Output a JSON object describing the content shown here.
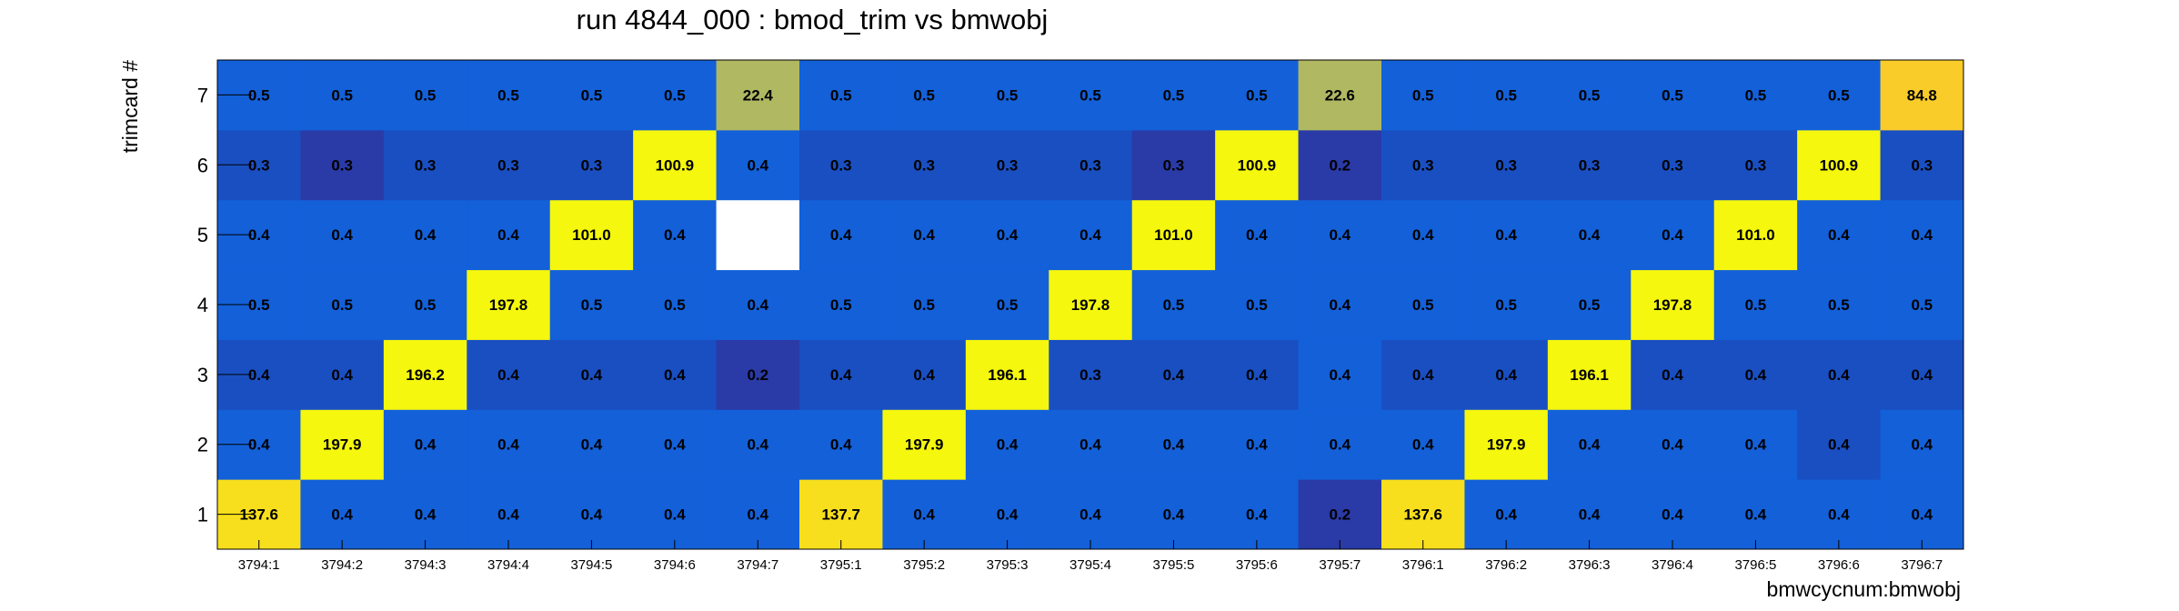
{
  "chart_data": {
    "type": "heatmap",
    "title": "run 4844_000 : bmod_trim vs bmwobj",
    "xlabel": "bmwcycnum:bmwobj",
    "ylabel": "trimcard #",
    "x_categories": [
      "3794:1",
      "3794:2",
      "3794:3",
      "3794:4",
      "3794:5",
      "3794:6",
      "3794:7",
      "3795:1",
      "3795:2",
      "3795:3",
      "3795:4",
      "3795:5",
      "3795:6",
      "3795:7",
      "3796:1",
      "3796:2",
      "3796:3",
      "3796:4",
      "3796:5",
      "3796:6",
      "3796:7"
    ],
    "y_categories": [
      "1",
      "2",
      "3",
      "4",
      "5",
      "6",
      "7"
    ],
    "grid": false,
    "values": [
      [
        "137.6",
        "0.4",
        "0.4",
        "0.4",
        "0.4",
        "0.4",
        "0.4",
        "137.7",
        "0.4",
        "0.4",
        "0.4",
        "0.4",
        "0.4",
        "0.2",
        "137.6",
        "0.4",
        "0.4",
        "0.4",
        "0.4",
        "0.4",
        "0.4"
      ],
      [
        "0.4",
        "197.9",
        "0.4",
        "0.4",
        "0.4",
        "0.4",
        "0.4",
        "0.4",
        "197.9",
        "0.4",
        "0.4",
        "0.4",
        "0.4",
        "0.4",
        "0.4",
        "197.9",
        "0.4",
        "0.4",
        "0.4",
        "0.4",
        "0.4"
      ],
      [
        "0.4",
        "0.4",
        "196.2",
        "0.4",
        "0.4",
        "0.4",
        "0.2",
        "0.4",
        "0.4",
        "196.1",
        "0.3",
        "0.4",
        "0.4",
        "0.4",
        "0.4",
        "0.4",
        "196.1",
        "0.4",
        "0.4",
        "0.4",
        "0.4"
      ],
      [
        "0.5",
        "0.5",
        "0.5",
        "197.8",
        "0.5",
        "0.5",
        "0.4",
        "0.5",
        "0.5",
        "0.5",
        "197.8",
        "0.5",
        "0.5",
        "0.4",
        "0.5",
        "0.5",
        "0.5",
        "197.8",
        "0.5",
        "0.5",
        "0.5"
      ],
      [
        "0.4",
        "0.4",
        "0.4",
        "0.4",
        "101.0",
        "0.4",
        null,
        "0.4",
        "0.4",
        "0.4",
        "0.4",
        "101.0",
        "0.4",
        "0.4",
        "0.4",
        "0.4",
        "0.4",
        "0.4",
        "101.0",
        "0.4",
        "0.4"
      ],
      [
        "0.3",
        "0.3",
        "0.3",
        "0.3",
        "0.3",
        "100.9",
        "0.4",
        "0.3",
        "0.3",
        "0.3",
        "0.3",
        "0.3",
        "100.9",
        "0.2",
        "0.3",
        "0.3",
        "0.3",
        "0.3",
        "0.3",
        "100.9",
        "0.3"
      ],
      [
        "0.5",
        "0.5",
        "0.5",
        "0.5",
        "0.5",
        "0.5",
        "22.4",
        "0.5",
        "0.5",
        "0.5",
        "0.5",
        "0.5",
        "0.5",
        "22.6",
        "0.5",
        "0.5",
        "0.5",
        "0.5",
        "0.5",
        "0.5",
        "84.8"
      ]
    ],
    "cell_colors": [
      [
        "#f7df1d",
        "#1360d9",
        "#1360d9",
        "#1360d9",
        "#1360d9",
        "#1360d9",
        "#1360d9",
        "#f7df1d",
        "#1360d9",
        "#1360d9",
        "#1360d9",
        "#1360d9",
        "#1360d9",
        "#2a3aa6",
        "#f7df1d",
        "#1360d9",
        "#1360d9",
        "#1360d9",
        "#1360d9",
        "#1360d9",
        "#1360d9"
      ],
      [
        "#1360d9",
        "#f5f70e",
        "#1360d9",
        "#1360d9",
        "#1360d9",
        "#1360d9",
        "#1360d9",
        "#1360d9",
        "#f5f70e",
        "#1360d9",
        "#1360d9",
        "#1360d9",
        "#1360d9",
        "#1360d9",
        "#1360d9",
        "#f5f70e",
        "#1360d9",
        "#1360d9",
        "#1360d9",
        "#1a4fc2",
        "#1360d9"
      ],
      [
        "#1a4fc2",
        "#1a4fc2",
        "#f5f70e",
        "#1a4fc2",
        "#1a4fc2",
        "#1a4fc2",
        "#2a3aa6",
        "#1a4fc2",
        "#1a4fc2",
        "#f5f70e",
        "#1a4fc2",
        "#1a4fc2",
        "#1a4fc2",
        "#1360d9",
        "#1a4fc2",
        "#1a4fc2",
        "#f5f70e",
        "#1a4fc2",
        "#1a4fc2",
        "#1a4fc2",
        "#1a4fc2"
      ],
      [
        "#1360d9",
        "#1360d9",
        "#1360d9",
        "#f5f70e",
        "#1360d9",
        "#1360d9",
        "#1360d9",
        "#1360d9",
        "#1360d9",
        "#1360d9",
        "#f5f70e",
        "#1360d9",
        "#1360d9",
        "#1360d9",
        "#1360d9",
        "#1360d9",
        "#1360d9",
        "#f5f70e",
        "#1360d9",
        "#1360d9",
        "#1360d9"
      ],
      [
        "#1360d9",
        "#1360d9",
        "#1360d9",
        "#1360d9",
        "#f5f70e",
        "#1360d9",
        "#ffffff",
        "#1360d9",
        "#1360d9",
        "#1360d9",
        "#1360d9",
        "#f5f70e",
        "#1360d9",
        "#1360d9",
        "#1360d9",
        "#1360d9",
        "#1360d9",
        "#1360d9",
        "#f5f70e",
        "#1360d9",
        "#1360d9"
      ],
      [
        "#1a4fc2",
        "#2a3aa6",
        "#1a4fc2",
        "#1a4fc2",
        "#1a4fc2",
        "#f5f70e",
        "#1360d9",
        "#1a4fc2",
        "#1a4fc2",
        "#1a4fc2",
        "#1a4fc2",
        "#2a3aa6",
        "#f5f70e",
        "#2a3aa6",
        "#1a4fc2",
        "#1a4fc2",
        "#1a4fc2",
        "#1a4fc2",
        "#1a4fc2",
        "#f5f70e",
        "#1a4fc2"
      ],
      [
        "#1360d9",
        "#1360d9",
        "#1360d9",
        "#1360d9",
        "#1360d9",
        "#1360d9",
        "#b0b862",
        "#1360d9",
        "#1360d9",
        "#1360d9",
        "#1360d9",
        "#1360d9",
        "#1360d9",
        "#b0b862",
        "#1360d9",
        "#1360d9",
        "#1360d9",
        "#1360d9",
        "#1360d9",
        "#1360d9",
        "#f9cc2a"
      ]
    ]
  }
}
